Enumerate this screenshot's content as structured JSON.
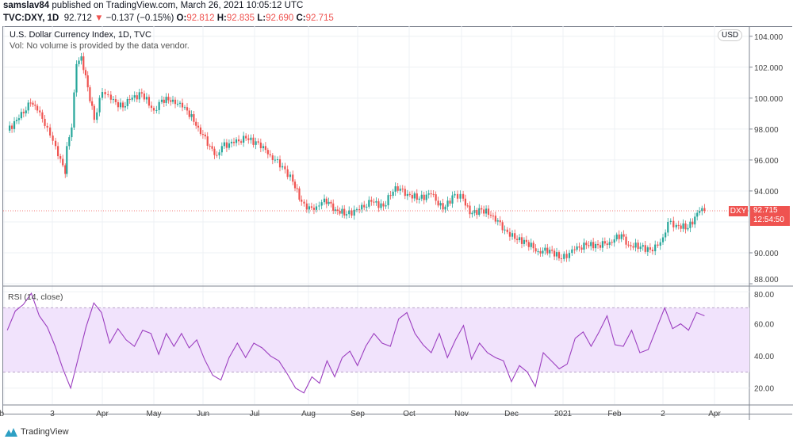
{
  "header": {
    "publisher": "samslav84",
    "published_text": "published on TradingView.com, March 26, 2021 10:05:12 UTC",
    "symbol": "TVC:DXY, 1D",
    "last": "92.712",
    "change": "−0.137 (−0.15%)",
    "o_label": "O:",
    "o": "92.812",
    "h_label": "H:",
    "h": "92.835",
    "l_label": "L:",
    "l": "92.690",
    "c_label": "C:",
    "c": "92.715"
  },
  "legend": {
    "title": "U.S. Dollar Currency Index, 1D, TVC",
    "volume_note": "Vol: No volume is provided by the data vendor."
  },
  "currency_button": "USD",
  "price_tag": {
    "symbol": "DXY",
    "price": "92.715",
    "countdown": "12:54:50"
  },
  "rsi_label": "RSI (14, close)",
  "brand": "TradingView",
  "colors": {
    "up": "#26a69a",
    "down": "#ef5350",
    "rsi": "#9c3fc0",
    "rsi_band": "#f1e3fc"
  },
  "chart_data": [
    {
      "type": "candlestick",
      "title": "U.S. Dollar Currency Index, 1D, TVC",
      "ylim": [
        87.9,
        104.5
      ],
      "y_ticks": [
        "104.000",
        "102.000",
        "100.000",
        "98.000",
        "96.000",
        "94.000",
        "90.000",
        "88.000"
      ],
      "current_price": 92.715,
      "closes": [
        [
          "2020-02-03",
          97.9
        ],
        [
          "2020-02-10",
          98.7
        ],
        [
          "2020-02-17",
          99.7
        ],
        [
          "2020-02-21",
          99.2
        ],
        [
          "2020-02-27",
          98.1
        ],
        [
          "2020-03-03",
          96.9
        ],
        [
          "2020-03-09",
          95.1
        ],
        [
          "2020-03-10",
          96.9
        ],
        [
          "2020-03-13",
          98.1
        ],
        [
          "2020-03-16",
          102.2
        ],
        [
          "2020-03-19",
          102.7
        ],
        [
          "2020-03-23",
          100.7
        ],
        [
          "2020-03-27",
          98.6
        ],
        [
          "2020-04-01",
          100.4
        ],
        [
          "2020-04-06",
          99.9
        ],
        [
          "2020-04-13",
          99.4
        ],
        [
          "2020-04-17",
          99.9
        ],
        [
          "2020-04-24",
          100.3
        ],
        [
          "2020-05-01",
          99.2
        ],
        [
          "2020-05-06",
          99.9
        ],
        [
          "2020-05-13",
          99.9
        ],
        [
          "2020-05-19",
          99.4
        ],
        [
          "2020-05-22",
          99.2
        ],
        [
          "2020-05-29",
          98.1
        ],
        [
          "2020-06-05",
          96.9
        ],
        [
          "2020-06-09",
          96.3
        ],
        [
          "2020-06-12",
          96.9
        ],
        [
          "2020-06-19",
          97.1
        ],
        [
          "2020-06-26",
          97.4
        ],
        [
          "2020-07-06",
          96.9
        ],
        [
          "2020-07-10",
          96.3
        ],
        [
          "2020-07-17",
          95.6
        ],
        [
          "2020-07-23",
          94.6
        ],
        [
          "2020-07-28",
          93.3
        ],
        [
          "2020-07-31",
          92.8
        ],
        [
          "2020-08-06",
          93.0
        ],
        [
          "2020-08-11",
          93.5
        ],
        [
          "2020-08-18",
          92.8
        ],
        [
          "2020-08-25",
          92.5
        ],
        [
          "2020-09-02",
          92.8
        ],
        [
          "2020-09-09",
          93.3
        ],
        [
          "2020-09-16",
          93.0
        ],
        [
          "2020-09-23",
          94.3
        ],
        [
          "2020-09-30",
          93.8
        ],
        [
          "2020-10-07",
          93.5
        ],
        [
          "2020-10-14",
          93.8
        ],
        [
          "2020-10-21",
          92.8
        ],
        [
          "2020-10-28",
          93.8
        ],
        [
          "2020-11-02",
          93.5
        ],
        [
          "2020-11-06",
          92.5
        ],
        [
          "2020-11-13",
          92.8
        ],
        [
          "2020-11-20",
          92.4
        ],
        [
          "2020-11-27",
          91.5
        ],
        [
          "2020-12-03",
          90.9
        ],
        [
          "2020-12-10",
          90.7
        ],
        [
          "2020-12-17",
          90.1
        ],
        [
          "2020-12-24",
          90.2
        ],
        [
          "2020-12-31",
          89.6
        ],
        [
          "2021-01-08",
          90.2
        ],
        [
          "2021-01-15",
          90.5
        ],
        [
          "2021-01-22",
          90.5
        ],
        [
          "2021-01-29",
          90.7
        ],
        [
          "2021-02-05",
          91.2
        ],
        [
          "2021-02-09",
          90.5
        ],
        [
          "2021-02-16",
          90.4
        ],
        [
          "2021-02-23",
          90.1
        ],
        [
          "2021-03-01",
          91.0
        ],
        [
          "2021-03-04",
          92.0
        ],
        [
          "2021-03-09",
          91.8
        ],
        [
          "2021-03-16",
          91.6
        ],
        [
          "2021-03-23",
          92.7
        ],
        [
          "2021-03-26",
          92.715
        ]
      ]
    },
    {
      "type": "line",
      "title": "RSI (14, close)",
      "ylim": [
        10,
        83
      ],
      "y_ticks": [
        "80.00",
        "60.00",
        "40.00",
        "20.00"
      ],
      "bands": [
        30,
        70
      ],
      "range": [
        "2020-02-03",
        "2021-03-26"
      ],
      "values": [
        56,
        68,
        72,
        79,
        65,
        58,
        46,
        32,
        20,
        39,
        58,
        73,
        67,
        48,
        57,
        50,
        46,
        56,
        54,
        41,
        54,
        46,
        54,
        45,
        50,
        38,
        28,
        25,
        39,
        48,
        39,
        48,
        45,
        40,
        37,
        29,
        20,
        17,
        27,
        23,
        37,
        27,
        39,
        43,
        34,
        46,
        54,
        48,
        46,
        63,
        67,
        54,
        47,
        42,
        54,
        39,
        50,
        59,
        38,
        48,
        42,
        39,
        37,
        24,
        34,
        30,
        21,
        42,
        37,
        32,
        35,
        51,
        55,
        46,
        55,
        65,
        47,
        46,
        56,
        42,
        44,
        57,
        70,
        57,
        60,
        56,
        67,
        65
      ]
    }
  ],
  "x_axis": {
    "labels": [
      "b",
      "3",
      "Apr",
      "May",
      "Jun",
      "Jul",
      "Aug",
      "Sep",
      "Oct",
      "Nov",
      "Dec",
      "2021",
      "Feb",
      "2",
      "Apr"
    ]
  }
}
